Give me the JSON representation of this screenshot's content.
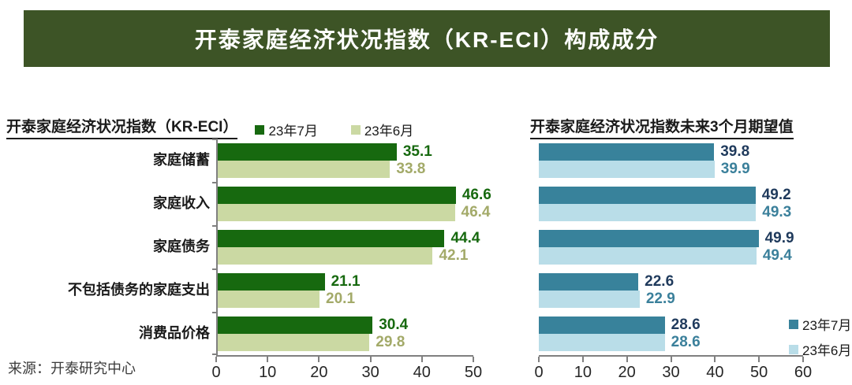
{
  "banner": {
    "title": "开泰家庭经济状况指数（KR-ECI）构成成分"
  },
  "source_label": "来源：开泰研究中心",
  "colors": {
    "banner_bg": "#3d5426",
    "banner_text": "#ffffff",
    "axis": "#808080",
    "july_green": "#17690f",
    "june_green": "#cbd9a3",
    "june_green_label": "#a3aa69",
    "july_teal": "#38829b",
    "june_blue": "#b9dde8",
    "july_navy_label": "#1f3a5c",
    "june_teal_label": "#3b809b"
  },
  "chart_data": [
    {
      "type": "bar",
      "orientation": "horizontal",
      "title": "开泰家庭经济状况指数（KR-ECI）",
      "categories": [
        "家庭储蓄",
        "家庭收入",
        "家庭债务",
        "不包括债务的家庭支出",
        "消费品价格"
      ],
      "series": [
        {
          "name": "23年7月",
          "color": "#17690f",
          "label_color": "#17690f",
          "values": [
            35.1,
            46.6,
            44.4,
            21.1,
            30.4
          ]
        },
        {
          "name": "23年6月",
          "color": "#cbd9a3",
          "label_color": "#a3aa69",
          "values": [
            33.8,
            46.4,
            42.1,
            20.1,
            29.8
          ]
        }
      ],
      "xlim": [
        0,
        50
      ],
      "xticks": [
        0,
        10,
        20,
        30,
        40,
        50
      ],
      "grid": false,
      "show_category_labels": true,
      "show_value_axis": true,
      "legend_position": "top"
    },
    {
      "type": "bar",
      "orientation": "horizontal",
      "title": "开泰家庭经济状况指数未来3个月期望值",
      "categories": [
        "家庭储蓄",
        "家庭收入",
        "家庭债务",
        "不包括债务的家庭支出",
        "消费品价格"
      ],
      "series": [
        {
          "name": "23年7月",
          "color": "#38829b",
          "label_color": "#1f3a5c",
          "values": [
            39.8,
            49.2,
            49.9,
            22.6,
            28.6
          ]
        },
        {
          "name": "23年6月",
          "color": "#b9dde8",
          "label_color": "#3b809b",
          "values": [
            39.9,
            49.3,
            49.4,
            22.9,
            28.6
          ]
        }
      ],
      "xlim": [
        0,
        60
      ],
      "xticks": [
        0,
        10,
        20,
        30,
        40,
        50,
        60
      ],
      "grid": false,
      "show_category_labels": false,
      "show_value_axis": false,
      "legend_position": "bottom-right"
    }
  ]
}
